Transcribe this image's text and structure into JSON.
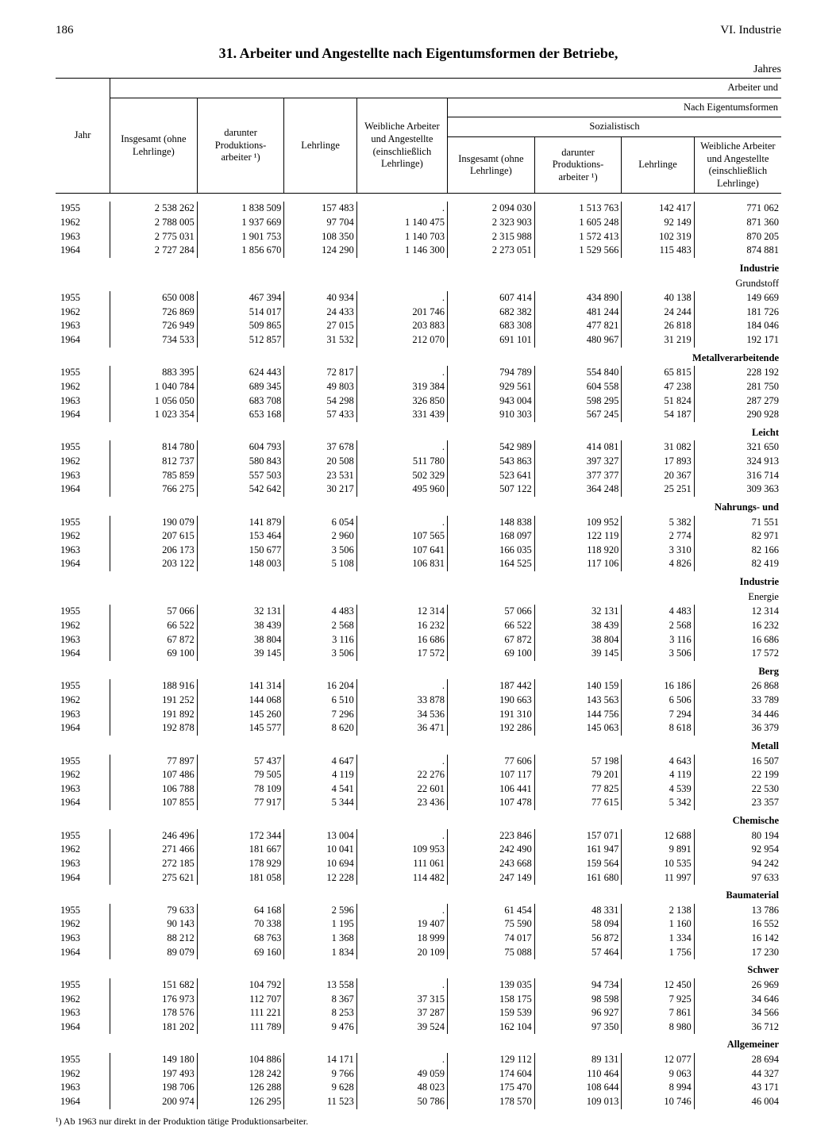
{
  "page_number": "186",
  "section_header": "VI. Industrie",
  "title": "31. Arbeiter und Angestellte nach Eigentumsformen der Betriebe,",
  "year_word_right": "Jahres",
  "header": {
    "jahr": "Jahr",
    "insgesamt": "Insgesamt (ohne Lehrlinge)",
    "darunter_prod": "darunter Produktions- arbeiter ¹)",
    "lehrlinge": "Lehrlinge",
    "weibliche": "Weibliche Arbeiter und Angestellte (einschließlich Lehrlinge)",
    "arbeiter_und": "Arbeiter und",
    "nach_eigentum": "Nach Eigentumsformen",
    "sozialistisch": "Sozialistisch"
  },
  "sections": [
    {
      "label": "",
      "sublabel": ""
    },
    {
      "label": "Industrie",
      "sublabel": "Grundstoff"
    },
    {
      "label": "Metallverarbeitende",
      "sublabel": ""
    },
    {
      "label": "Leicht",
      "sublabel": ""
    },
    {
      "label": "Nahrungs- und",
      "sublabel": ""
    },
    {
      "label": "Industrie",
      "sublabel": "Energie"
    },
    {
      "label": "Berg",
      "sublabel": ""
    },
    {
      "label": "Metall",
      "sublabel": ""
    },
    {
      "label": "Chemische",
      "sublabel": ""
    },
    {
      "label": "Baumaterial",
      "sublabel": ""
    },
    {
      "label": "Schwer",
      "sublabel": ""
    },
    {
      "label": "Allgemeiner",
      "sublabel": ""
    }
  ],
  "blocks": [
    [
      [
        "1955",
        "2 538 262",
        "1 838 509",
        "157 483",
        ".",
        "2 094 030",
        "1 513 763",
        "142 417",
        "771 062"
      ],
      [
        "1962",
        "2 788 005",
        "1 937 669",
        "97 704",
        "1 140 475",
        "2 323 903",
        "1 605 248",
        "92 149",
        "871 360"
      ],
      [
        "1963",
        "2 775 031",
        "1 901 753",
        "108 350",
        "1 140 703",
        "2 315 988",
        "1 572 413",
        "102 319",
        "870 205"
      ],
      [
        "1964",
        "2 727 284",
        "1 856 670",
        "124 290",
        "1 146 300",
        "2 273 051",
        "1 529 566",
        "115 483",
        "874 881"
      ]
    ],
    [
      [
        "1955",
        "650 008",
        "467 394",
        "40 934",
        ".",
        "607 414",
        "434 890",
        "40 138",
        "149 669"
      ],
      [
        "1962",
        "726 869",
        "514 017",
        "24 433",
        "201 746",
        "682 382",
        "481 244",
        "24 244",
        "181 726"
      ],
      [
        "1963",
        "726 949",
        "509 865",
        "27 015",
        "203 883",
        "683 308",
        "477 821",
        "26 818",
        "184 046"
      ],
      [
        "1964",
        "734 533",
        "512 857",
        "31 532",
        "212 070",
        "691 101",
        "480 967",
        "31 219",
        "192 171"
      ]
    ],
    [
      [
        "1955",
        "883 395",
        "624 443",
        "72 817",
        ".",
        "794 789",
        "554 840",
        "65 815",
        "228 192"
      ],
      [
        "1962",
        "1 040 784",
        "689 345",
        "49 803",
        "319 384",
        "929 561",
        "604 558",
        "47 238",
        "281 750"
      ],
      [
        "1963",
        "1 056 050",
        "683 708",
        "54 298",
        "326 850",
        "943 004",
        "598 295",
        "51 824",
        "287 279"
      ],
      [
        "1964",
        "1 023 354",
        "653 168",
        "57 433",
        "331 439",
        "910 303",
        "567 245",
        "54 187",
        "290 928"
      ]
    ],
    [
      [
        "1955",
        "814 780",
        "604 793",
        "37 678",
        ".",
        "542 989",
        "414 081",
        "31 082",
        "321 650"
      ],
      [
        "1962",
        "812 737",
        "580 843",
        "20 508",
        "511 780",
        "543 863",
        "397 327",
        "17 893",
        "324 913"
      ],
      [
        "1963",
        "785 859",
        "557 503",
        "23 531",
        "502 329",
        "523 641",
        "377 377",
        "20 367",
        "316 714"
      ],
      [
        "1964",
        "766 275",
        "542 642",
        "30 217",
        "495 960",
        "507 122",
        "364 248",
        "25 251",
        "309 363"
      ]
    ],
    [
      [
        "1955",
        "190 079",
        "141 879",
        "6 054",
        ".",
        "148 838",
        "109 952",
        "5 382",
        "71 551"
      ],
      [
        "1962",
        "207 615",
        "153 464",
        "2 960",
        "107 565",
        "168 097",
        "122 119",
        "2 774",
        "82 971"
      ],
      [
        "1963",
        "206 173",
        "150 677",
        "3 506",
        "107 641",
        "166 035",
        "118 920",
        "3 310",
        "82 166"
      ],
      [
        "1964",
        "203 122",
        "148 003",
        "5 108",
        "106 831",
        "164 525",
        "117 106",
        "4 826",
        "82 419"
      ]
    ],
    [
      [
        "1955",
        "57 066",
        "32 131",
        "4 483",
        "12 314",
        "57 066",
        "32 131",
        "4 483",
        "12 314"
      ],
      [
        "1962",
        "66 522",
        "38 439",
        "2 568",
        "16 232",
        "66 522",
        "38 439",
        "2 568",
        "16 232"
      ],
      [
        "1963",
        "67 872",
        "38 804",
        "3 116",
        "16 686",
        "67 872",
        "38 804",
        "3 116",
        "16 686"
      ],
      [
        "1964",
        "69 100",
        "39 145",
        "3 506",
        "17 572",
        "69 100",
        "39 145",
        "3 506",
        "17 572"
      ]
    ],
    [
      [
        "1955",
        "188 916",
        "141 314",
        "16 204",
        ".",
        "187 442",
        "140 159",
        "16 186",
        "26 868"
      ],
      [
        "1962",
        "191 252",
        "144 068",
        "6 510",
        "33 878",
        "190 663",
        "143 563",
        "6 506",
        "33 789"
      ],
      [
        "1963",
        "191 892",
        "145 260",
        "7 296",
        "34 536",
        "191 310",
        "144 756",
        "7 294",
        "34 446"
      ],
      [
        "1964",
        "192 878",
        "145 577",
        "8 620",
        "36 471",
        "192 286",
        "145 063",
        "8 618",
        "36 379"
      ]
    ],
    [
      [
        "1955",
        "77 897",
        "57 437",
        "4 647",
        ".",
        "77 606",
        "57 198",
        "4 643",
        "16 507"
      ],
      [
        "1962",
        "107 486",
        "79 505",
        "4 119",
        "22 276",
        "107 117",
        "79 201",
        "4 119",
        "22 199"
      ],
      [
        "1963",
        "106 788",
        "78 109",
        "4 541",
        "22 601",
        "106 441",
        "77 825",
        "4 539",
        "22 530"
      ],
      [
        "1964",
        "107 855",
        "77 917",
        "5 344",
        "23 436",
        "107 478",
        "77 615",
        "5 342",
        "23 357"
      ]
    ],
    [
      [
        "1955",
        "246 496",
        "172 344",
        "13 004",
        ".",
        "223 846",
        "157 071",
        "12 688",
        "80 194"
      ],
      [
        "1962",
        "271 466",
        "181 667",
        "10 041",
        "109 953",
        "242 490",
        "161 947",
        "9 891",
        "92 954"
      ],
      [
        "1963",
        "272 185",
        "178 929",
        "10 694",
        "111 061",
        "243 668",
        "159 564",
        "10 535",
        "94 242"
      ],
      [
        "1964",
        "275 621",
        "181 058",
        "12 228",
        "114 482",
        "247 149",
        "161 680",
        "11 997",
        "97 633"
      ]
    ],
    [
      [
        "1955",
        "79 633",
        "64 168",
        "2 596",
        ".",
        "61 454",
        "48 331",
        "2 138",
        "13 786"
      ],
      [
        "1962",
        "90 143",
        "70 338",
        "1 195",
        "19 407",
        "75 590",
        "58 094",
        "1 160",
        "16 552"
      ],
      [
        "1963",
        "88 212",
        "68 763",
        "1 368",
        "18 999",
        "74 017",
        "56 872",
        "1 334",
        "16 142"
      ],
      [
        "1964",
        "89 079",
        "69 160",
        "1 834",
        "20 109",
        "75 088",
        "57 464",
        "1 756",
        "17 230"
      ]
    ],
    [
      [
        "1955",
        "151 682",
        "104 792",
        "13 558",
        ".",
        "139 035",
        "94 734",
        "12 450",
        "26 969"
      ],
      [
        "1962",
        "176 973",
        "112 707",
        "8 367",
        "37 315",
        "158 175",
        "98 598",
        "7 925",
        "34 646"
      ],
      [
        "1963",
        "178 576",
        "111 221",
        "8 253",
        "37 287",
        "159 539",
        "96 927",
        "7 861",
        "34 566"
      ],
      [
        "1964",
        "181 202",
        "111 789",
        "9 476",
        "39 524",
        "162 104",
        "97 350",
        "8 980",
        "36 712"
      ]
    ],
    [
      [
        "1955",
        "149 180",
        "104 886",
        "14 171",
        ".",
        "129 112",
        "89 131",
        "12 077",
        "28 694"
      ],
      [
        "1962",
        "197 493",
        "128 242",
        "9 766",
        "49 059",
        "174 604",
        "110 464",
        "9 063",
        "44 327"
      ],
      [
        "1963",
        "198 706",
        "126 288",
        "9 628",
        "48 023",
        "175 470",
        "108 644",
        "8 994",
        "43 171"
      ],
      [
        "1964",
        "200 974",
        "126 295",
        "11 523",
        "50 786",
        "178 570",
        "109 013",
        "10 746",
        "46 004"
      ]
    ]
  ],
  "footnote": "¹) Ab 1963 nur direkt in der Produktion tätige Produktionsarbeiter.",
  "style": {
    "bg": "#ffffff",
    "fg": "#000000",
    "font": "Times New Roman"
  }
}
